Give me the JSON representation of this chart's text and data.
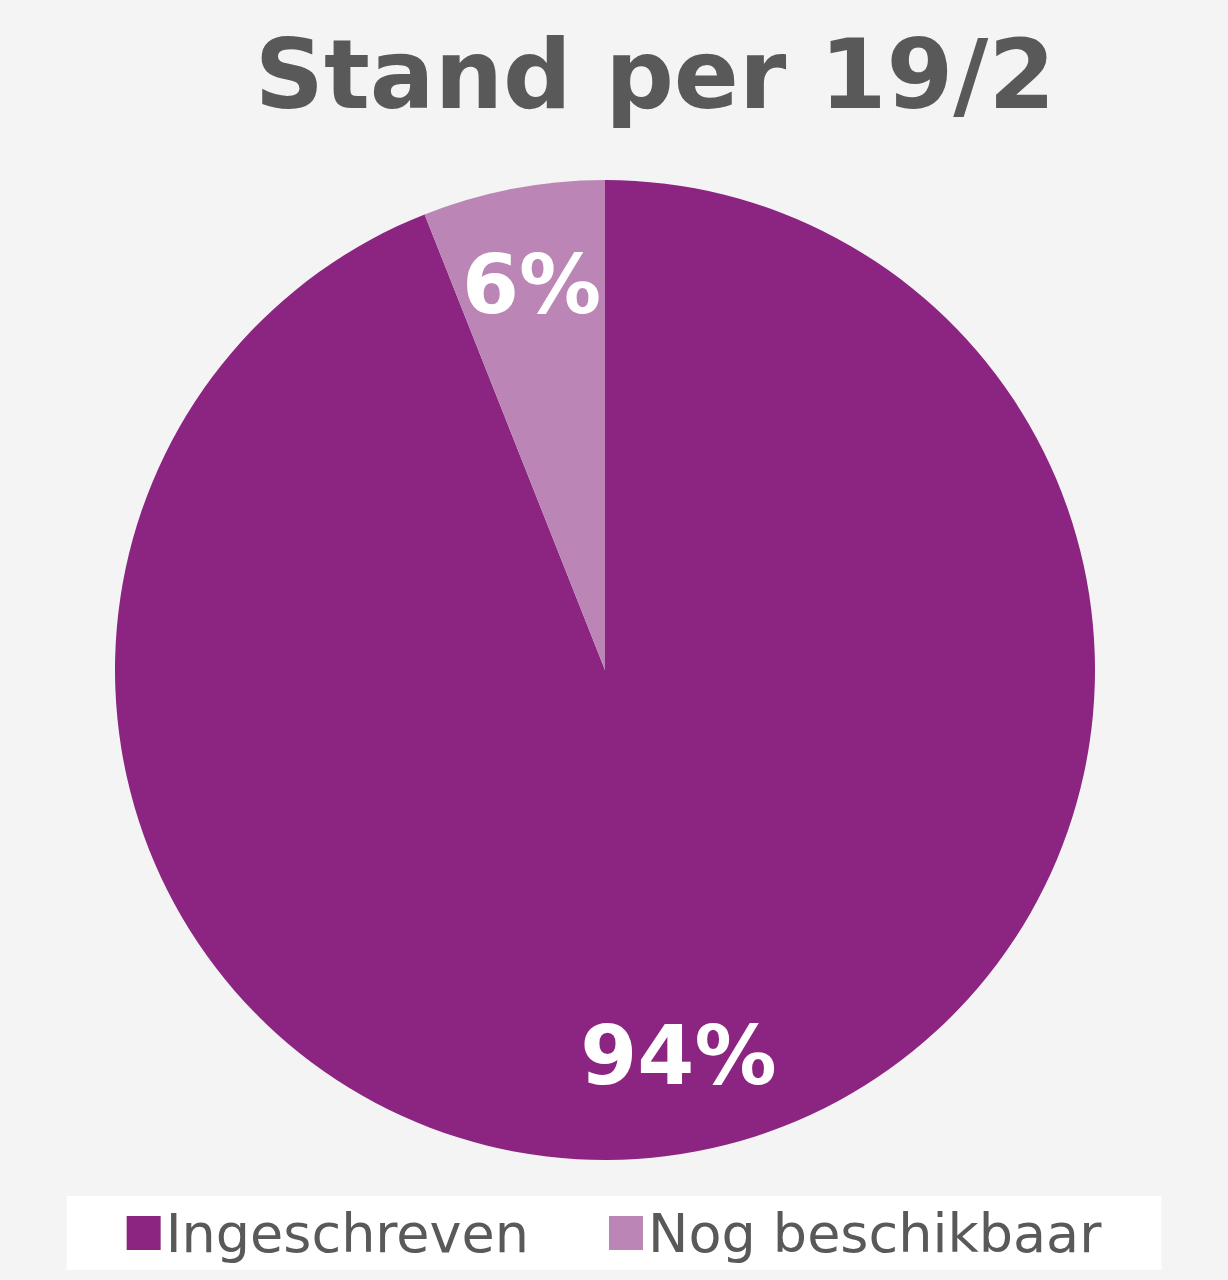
{
  "chart_data": {
    "type": "pie",
    "title": "Stand per 19/2",
    "categories": [
      "Ingeschreven",
      "Nog beschikbaar"
    ],
    "values": [
      94,
      6
    ],
    "colors": [
      "#8b2581",
      "#bb86b5"
    ],
    "value_labels": [
      "94%",
      "6%"
    ],
    "legend": "bottom"
  }
}
